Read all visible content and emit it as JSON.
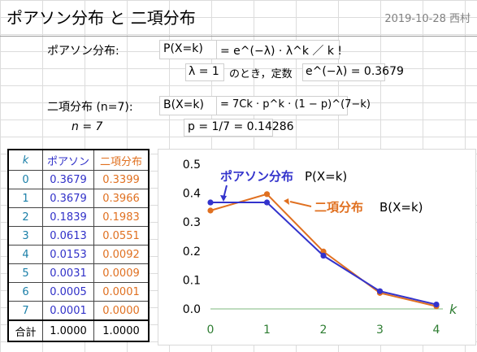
{
  "header": {
    "title": "ポアソン分布 と 二項分布",
    "date_author": "2019-10-28 西村"
  },
  "poisson": {
    "label": "ポアソン分布:",
    "formula_lhs": "P(X=k)",
    "formula_rhs": "= e^(−λ) · λ^k ／ k !",
    "lambda_line": "λ = 1",
    "lambda_text": "のとき，定数",
    "const_expr": "e^(−λ) = 0.3679"
  },
  "binomial": {
    "label": "二項分布 (n=7):",
    "formula_lhs": "B(X=k)",
    "formula_rhs": "= 7Ck · p^k · (1 − p)^(7−k)",
    "n_line": "n = 7",
    "p_line": "p = 1/7 = 0.14286"
  },
  "table": {
    "headers": {
      "k": "k",
      "poisson": "ポアソン",
      "binomial": "二項分布"
    },
    "rows": [
      {
        "k": "0",
        "poisson": "0.3679",
        "binomial": "0.3399"
      },
      {
        "k": "1",
        "poisson": "0.3679",
        "binomial": "0.3966"
      },
      {
        "k": "2",
        "poisson": "0.1839",
        "binomial": "0.1983"
      },
      {
        "k": "3",
        "poisson": "0.0613",
        "binomial": "0.0551"
      },
      {
        "k": "4",
        "poisson": "0.0153",
        "binomial": "0.0092"
      },
      {
        "k": "5",
        "poisson": "0.0031",
        "binomial": "0.0009"
      },
      {
        "k": "6",
        "poisson": "0.0005",
        "binomial": "0.0001"
      },
      {
        "k": "7",
        "poisson": "0.0001",
        "binomial": "0.0000"
      }
    ],
    "sum_label": "合計",
    "sum_poisson": "1.0000",
    "sum_binomial": "1.0000"
  },
  "chart_data": {
    "type": "line",
    "x": [
      0,
      1,
      2,
      3,
      4
    ],
    "xlabel": "k",
    "ylim": [
      0,
      0.5
    ],
    "yticks": [
      "0.0",
      "0.1",
      "0.2",
      "0.3",
      "0.4",
      "0.5"
    ],
    "xticks": [
      "0",
      "1",
      "2",
      "3",
      "4"
    ],
    "grid": false,
    "series": [
      {
        "name": "ポアソン分布",
        "annotation_suffix": "P(X=k)",
        "color": "#3333cc",
        "values": [
          0.3679,
          0.3679,
          0.1839,
          0.0613,
          0.0153
        ]
      },
      {
        "name": "二項分布",
        "annotation_suffix": "B(X=k)",
        "color": "#e07020",
        "values": [
          0.3399,
          0.3966,
          0.1983,
          0.0551,
          0.0092
        ]
      }
    ]
  },
  "colors": {
    "poisson": "#3333cc",
    "binomial": "#e07020",
    "k": "#1a7fa8",
    "axis_text": "#2e7d32"
  }
}
